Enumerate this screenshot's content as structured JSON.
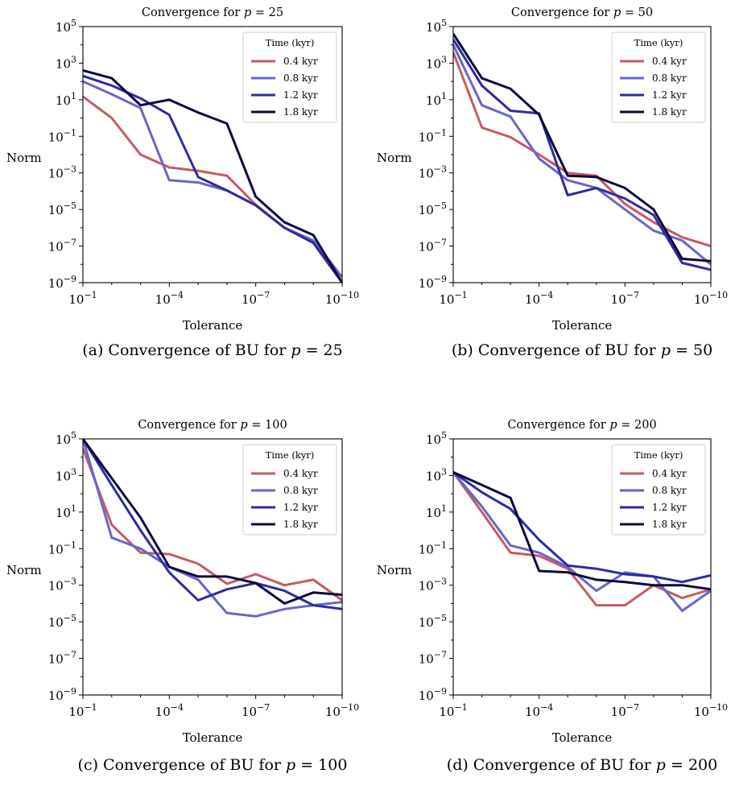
{
  "chart_data": [
    {
      "type": "line",
      "title": "Convergence for p = 25",
      "caption": "(a) Convergence of BU for p = 25",
      "xlabel": "Tolerance",
      "ylabel": "Norm",
      "xscale": "log",
      "yscale": "log",
      "x_reversed": true,
      "xlim": [
        0.1,
        1e-10
      ],
      "ylim": [
        1e-09,
        100000
      ],
      "xticks": [
        {
          "base": "10",
          "exp": "−1"
        },
        {
          "base": "10",
          "exp": "−4"
        },
        {
          "base": "10",
          "exp": "−7"
        },
        {
          "base": "10",
          "exp": "−10"
        }
      ],
      "yticks": [
        {
          "base": "10",
          "exp": "5"
        },
        {
          "base": "10",
          "exp": "3"
        },
        {
          "base": "10",
          "exp": "1"
        },
        {
          "base": "10",
          "exp": "−1"
        },
        {
          "base": "10",
          "exp": "−3"
        },
        {
          "base": "10",
          "exp": "−5"
        },
        {
          "base": "10",
          "exp": "−7"
        },
        {
          "base": "10",
          "exp": "−9"
        }
      ],
      "grid": false,
      "legend": {
        "title": "Time (kyr)",
        "placement": "top-right"
      },
      "x": [
        0.1,
        0.01,
        0.001,
        0.0001,
        1e-05,
        1e-06,
        1e-07,
        1e-08,
        1e-09,
        1e-10
      ],
      "series": [
        {
          "name": "0.4 kyr",
          "color": "#c65a62",
          "values": [
            15,
            1,
            0.01,
            0.002,
            0.0013,
            0.0007,
            1.8e-05,
            1e-06,
            2e-07,
            2e-09
          ]
        },
        {
          "name": "0.8 kyr",
          "color": "#6666cc",
          "values": [
            100,
            20,
            3.5,
            0.0004,
            0.0003,
            0.00011,
            1.7e-05,
            1e-06,
            2e-07,
            2e-09
          ]
        },
        {
          "name": "1.2 kyr",
          "color": "#2c2ca0",
          "values": [
            200,
            60,
            12,
            1.5,
            0.0006,
            0.00011,
            1.7e-05,
            1e-06,
            1.5e-07,
            1e-09
          ]
        },
        {
          "name": "1.8 kyr",
          "color": "#0a0a40",
          "values": [
            400,
            150,
            5,
            10,
            2,
            0.5,
            5e-05,
            2e-06,
            4e-07,
            1e-09
          ]
        }
      ]
    },
    {
      "type": "line",
      "title": "Convergence for p = 50",
      "caption": "(b) Convergence of BU for p = 50",
      "xlabel": "Tolerance",
      "ylabel": "Norm",
      "xscale": "log",
      "yscale": "log",
      "x_reversed": true,
      "xlim": [
        0.1,
        1e-10
      ],
      "ylim": [
        1e-09,
        100000
      ],
      "xticks": [
        {
          "base": "10",
          "exp": "−1"
        },
        {
          "base": "10",
          "exp": "−4"
        },
        {
          "base": "10",
          "exp": "−7"
        },
        {
          "base": "10",
          "exp": "−10"
        }
      ],
      "yticks": [
        {
          "base": "10",
          "exp": "5"
        },
        {
          "base": "10",
          "exp": "3"
        },
        {
          "base": "10",
          "exp": "1"
        },
        {
          "base": "10",
          "exp": "−1"
        },
        {
          "base": "10",
          "exp": "−3"
        },
        {
          "base": "10",
          "exp": "−5"
        },
        {
          "base": "10",
          "exp": "−7"
        },
        {
          "base": "10",
          "exp": "−9"
        }
      ],
      "grid": false,
      "legend": {
        "title": "Time (kyr)",
        "placement": "top-right"
      },
      "x": [
        0.1,
        0.01,
        0.001,
        0.0001,
        1e-05,
        1e-06,
        1e-07,
        1e-08,
        1e-09,
        1e-10
      ],
      "series": [
        {
          "name": "0.4 kyr",
          "color": "#c65a62",
          "values": [
            4000,
            0.3,
            0.09,
            0.01,
            0.001,
            0.0007,
            2e-05,
            2e-06,
            3e-07,
            1e-07
          ]
        },
        {
          "name": "0.8 kyr",
          "color": "#6666cc",
          "values": [
            10000,
            5,
            1.2,
            0.006,
            0.0004,
            0.00015,
            1e-05,
            7e-07,
            2e-07,
            1e-08
          ]
        },
        {
          "name": "1.2 kyr",
          "color": "#2c2ca0",
          "values": [
            20000,
            60,
            2.5,
            1.8,
            6e-05,
            0.00015,
            4e-05,
            5e-06,
            1.2e-08,
            5e-09
          ]
        },
        {
          "name": "1.8 kyr",
          "color": "#0a0a40",
          "values": [
            40000,
            150,
            40,
            1.5,
            0.0007,
            0.0006,
            0.00015,
            1e-05,
            2e-08,
            1.5e-08
          ]
        }
      ]
    },
    {
      "type": "line",
      "title": "Convergence for p = 100",
      "caption": "(c) Convergence of BU for p = 100",
      "xlabel": "Tolerance",
      "ylabel": "Norm",
      "xscale": "log",
      "yscale": "log",
      "x_reversed": true,
      "xlim": [
        0.1,
        1e-10
      ],
      "ylim": [
        1e-09,
        100000
      ],
      "xticks": [
        {
          "base": "10",
          "exp": "−1"
        },
        {
          "base": "10",
          "exp": "−4"
        },
        {
          "base": "10",
          "exp": "−7"
        },
        {
          "base": "10",
          "exp": "−10"
        }
      ],
      "yticks": [
        {
          "base": "10",
          "exp": "5"
        },
        {
          "base": "10",
          "exp": "3"
        },
        {
          "base": "10",
          "exp": "1"
        },
        {
          "base": "10",
          "exp": "−1"
        },
        {
          "base": "10",
          "exp": "−3"
        },
        {
          "base": "10",
          "exp": "−5"
        },
        {
          "base": "10",
          "exp": "−7"
        },
        {
          "base": "10",
          "exp": "−9"
        }
      ],
      "grid": false,
      "legend": {
        "title": "Time (kyr)",
        "placement": "top-right"
      },
      "x": [
        0.1,
        0.01,
        0.001,
        0.0001,
        1e-05,
        1e-06,
        1e-07,
        1e-08,
        1e-09,
        1e-10
      ],
      "series": [
        {
          "name": "0.4 kyr",
          "color": "#c65a62",
          "values": [
            30000,
            2,
            0.06,
            0.05,
            0.015,
            0.0012,
            0.004,
            0.001,
            0.002,
            0.00015
          ]
        },
        {
          "name": "0.8 kyr",
          "color": "#6666cc",
          "values": [
            100000,
            0.4,
            0.1,
            0.01,
            0.002,
            3e-05,
            2e-05,
            5e-05,
            8e-05,
            0.00012
          ]
        },
        {
          "name": "1.2 kyr",
          "color": "#2c2ca0",
          "values": [
            100000,
            300,
            1,
            0.005,
            0.00015,
            0.0006,
            0.0013,
            0.0005,
            8e-05,
            5e-05
          ]
        },
        {
          "name": "1.8 kyr",
          "color": "#0a0a40",
          "values": [
            100000,
            700,
            5,
            0.01,
            0.003,
            0.003,
            0.0013,
            0.0001,
            0.0004,
            0.0003
          ]
        }
      ]
    },
    {
      "type": "line",
      "title": "Convergence for p = 200",
      "caption": "(d) Convergence of BU for p = 200",
      "xlabel": "Tolerance",
      "ylabel": "Norm",
      "xscale": "log",
      "yscale": "log",
      "x_reversed": true,
      "xlim": [
        0.1,
        1e-10
      ],
      "ylim": [
        1e-09,
        100000
      ],
      "xticks": [
        {
          "base": "10",
          "exp": "−1"
        },
        {
          "base": "10",
          "exp": "−4"
        },
        {
          "base": "10",
          "exp": "−7"
        },
        {
          "base": "10",
          "exp": "−10"
        }
      ],
      "yticks": [
        {
          "base": "10",
          "exp": "5"
        },
        {
          "base": "10",
          "exp": "3"
        },
        {
          "base": "10",
          "exp": "1"
        },
        {
          "base": "10",
          "exp": "−1"
        },
        {
          "base": "10",
          "exp": "−3"
        },
        {
          "base": "10",
          "exp": "−5"
        },
        {
          "base": "10",
          "exp": "−7"
        },
        {
          "base": "10",
          "exp": "−9"
        }
      ],
      "grid": false,
      "legend": {
        "title": "Time (kyr)",
        "placement": "top-right"
      },
      "x": [
        0.1,
        0.01,
        0.001,
        0.0001,
        1e-05,
        1e-06,
        1e-07,
        1e-08,
        1e-09,
        1e-10
      ],
      "series": [
        {
          "name": "0.4 kyr",
          "color": "#c65a62",
          "values": [
            1500,
            10,
            0.06,
            0.04,
            0.008,
            8e-05,
            8e-05,
            0.001,
            0.0002,
            0.0006
          ]
        },
        {
          "name": "0.8 kyr",
          "color": "#6666cc",
          "values": [
            1500,
            20,
            0.15,
            0.06,
            0.01,
            0.0005,
            0.005,
            0.003,
            4e-05,
            0.0005
          ]
        },
        {
          "name": "1.2 kyr",
          "color": "#2c2ca0",
          "values": [
            1500,
            120,
            15,
            0.3,
            0.012,
            0.008,
            0.004,
            0.003,
            0.0015,
            0.0035
          ]
        },
        {
          "name": "1.8 kyr",
          "color": "#0a0a40",
          "values": [
            1500,
            300,
            60,
            0.006,
            0.005,
            0.002,
            0.0015,
            0.001,
            0.001,
            0.0006
          ]
        }
      ]
    }
  ]
}
